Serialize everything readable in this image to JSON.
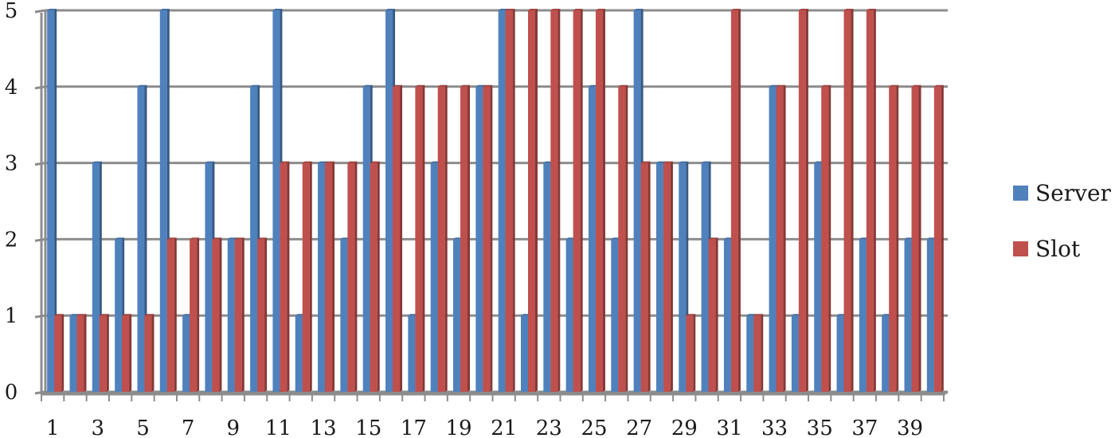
{
  "chart_data": {
    "type": "bar",
    "title": "",
    "xlabel": "",
    "ylabel": "",
    "ylim": [
      0,
      5
    ],
    "yticks": [
      0,
      1,
      2,
      3,
      4,
      5
    ],
    "categories": [
      1,
      2,
      3,
      4,
      5,
      6,
      7,
      8,
      9,
      10,
      11,
      12,
      13,
      14,
      15,
      16,
      17,
      18,
      19,
      20,
      21,
      22,
      23,
      24,
      25,
      26,
      27,
      28,
      29,
      30,
      31,
      32,
      33,
      34,
      35,
      36,
      37,
      38,
      39,
      40
    ],
    "xtick_labels_shown": [
      1,
      3,
      5,
      7,
      9,
      11,
      13,
      15,
      17,
      19,
      21,
      23,
      25,
      27,
      29,
      31,
      33,
      35,
      37,
      39
    ],
    "series": [
      {
        "name": "Server",
        "color": "#4f81bd",
        "values": [
          5,
          1,
          3,
          2,
          4,
          5,
          1,
          3,
          2,
          4,
          5,
          1,
          3,
          2,
          4,
          5,
          1,
          3,
          2,
          4,
          5,
          1,
          3,
          2,
          4,
          2,
          5,
          3,
          3,
          3,
          2,
          1,
          4,
          1,
          3,
          1,
          2,
          1,
          2,
          2
        ]
      },
      {
        "name": "Slot",
        "color": "#c0504d",
        "values": [
          1,
          1,
          1,
          1,
          1,
          2,
          2,
          2,
          2,
          2,
          3,
          3,
          3,
          3,
          3,
          4,
          4,
          4,
          4,
          4,
          5,
          5,
          5,
          5,
          5,
          4,
          3,
          3,
          1,
          2,
          5,
          1,
          4,
          5,
          4,
          5,
          5,
          4,
          4,
          4
        ]
      }
    ],
    "grid": true,
    "legend_position": "right"
  },
  "legend": {
    "items": [
      {
        "label": "Server",
        "color": "#4f81bd"
      },
      {
        "label": "Slot",
        "color": "#c0504d"
      }
    ]
  }
}
